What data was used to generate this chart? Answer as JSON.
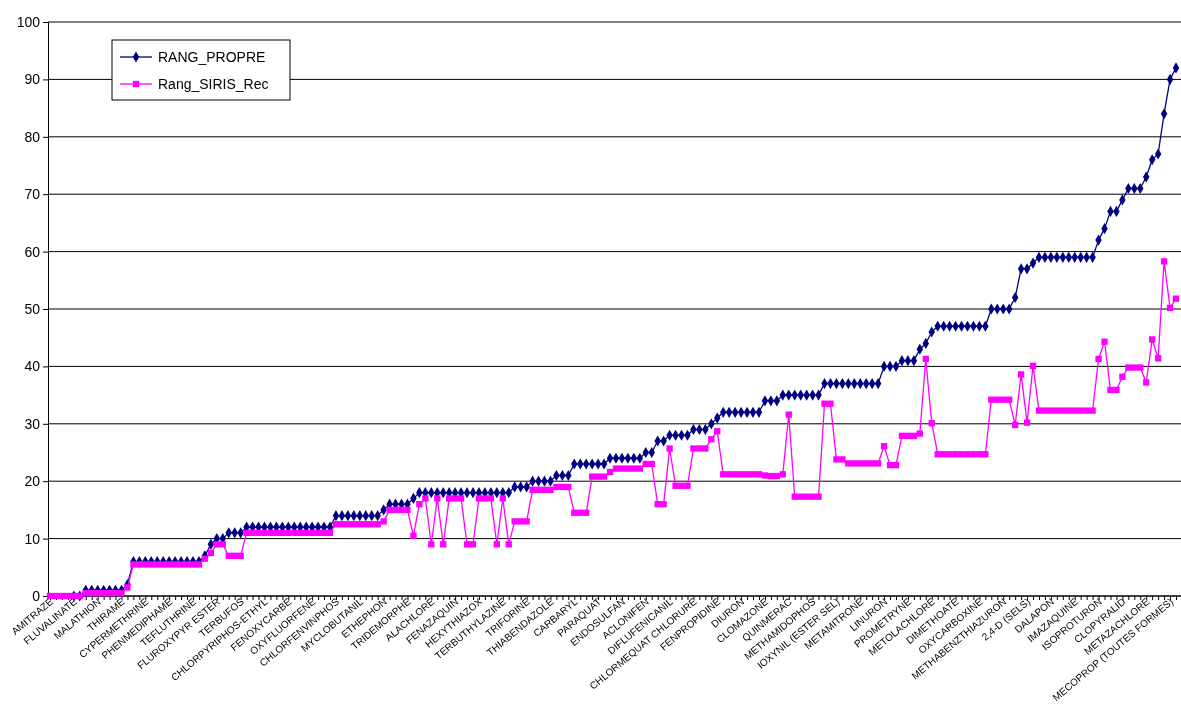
{
  "chart_data": {
    "type": "line",
    "categories": [
      "AMITRAZE",
      null,
      null,
      null,
      "FLUVALINATE",
      null,
      null,
      null,
      "MALATHION",
      null,
      null,
      null,
      "THIRAME",
      null,
      null,
      null,
      "CYPERMETHRINE",
      null,
      null,
      null,
      "PHENMEDIPHAME",
      null,
      null,
      null,
      "TEFLUTHRINE",
      null,
      null,
      null,
      "FLUROXYPYR ESTER",
      null,
      null,
      null,
      "TERBUFOS",
      null,
      null,
      null,
      "CHLORPYRIPHOS-ETHYL",
      null,
      null,
      null,
      "FENOXYCARBE",
      null,
      null,
      null,
      "OXYFLUORFENE",
      null,
      null,
      null,
      "CHLORFENVINPHOS",
      null,
      null,
      null,
      "MYCLOBUTANIL",
      null,
      null,
      null,
      "ETHEPHON",
      null,
      null,
      null,
      "TRIDEMORPHE",
      null,
      null,
      null,
      "ALACHLORE",
      null,
      null,
      null,
      "FENAZAQUIN",
      null,
      null,
      null,
      "HEXYTHIAZOX",
      null,
      null,
      null,
      "TERBUTHYLAZINE",
      null,
      null,
      null,
      "TRIFORINE",
      null,
      null,
      null,
      "THIABENDAZOLE",
      null,
      null,
      null,
      "CARBARYL",
      null,
      null,
      null,
      "PARAQUAT",
      null,
      null,
      null,
      "ENDOSULFAN",
      null,
      null,
      null,
      "ACLONIFEN",
      null,
      null,
      null,
      "DIFLUFENICANIL",
      null,
      null,
      null,
      "CHLORMEQUAT CHLORURE",
      null,
      null,
      null,
      "FENPROPIDINE",
      null,
      null,
      null,
      "DIURON",
      null,
      null,
      null,
      "CLOMAZONE",
      null,
      null,
      null,
      "QUINMERAC",
      null,
      null,
      null,
      "METHAMIDOPHOS",
      null,
      null,
      null,
      "IOXYNIL (ESTER SEL)",
      null,
      null,
      null,
      "METAMITRONE",
      null,
      null,
      null,
      "LINURON",
      null,
      null,
      null,
      "PROMETRYNE",
      null,
      null,
      null,
      "METOLACHLORE",
      null,
      null,
      null,
      "DIMETHOATE",
      null,
      null,
      null,
      "OXYCARBOXINE",
      null,
      null,
      null,
      "METHABENZTHIAZURON",
      null,
      null,
      null,
      "2,4-D (SELS)",
      null,
      null,
      null,
      "DALAPON",
      null,
      null,
      null,
      "IMAZAQUINE",
      null,
      null,
      null,
      "ISOPROTURON",
      null,
      null,
      null,
      "CLOPYRALID",
      null,
      null,
      null,
      "METAZACHLORE",
      null,
      null,
      null,
      "MECOPROP (TOUTES FORMES)",
      null
    ],
    "series": [
      {
        "name": "RANG_PROPRE",
        "color": "#000080",
        "marker": "diamond",
        "values": [
          null,
          null,
          null,
          null,
          0,
          0,
          1,
          1,
          1,
          1,
          1,
          1,
          1,
          2,
          6,
          6,
          6,
          6,
          6,
          6,
          6,
          6,
          6,
          6,
          6,
          6,
          7,
          9,
          10,
          10,
          11,
          11,
          11,
          12,
          12,
          12,
          12,
          12,
          12,
          12,
          12,
          12,
          12,
          12,
          12,
          12,
          12,
          12,
          14,
          14,
          14,
          14,
          14,
          14,
          14,
          14,
          15,
          16,
          16,
          16,
          16,
          17,
          18,
          18,
          18,
          18,
          18,
          18,
          18,
          18,
          18,
          18,
          18,
          18,
          18,
          18,
          18,
          18,
          19,
          19,
          19,
          20,
          20,
          20,
          20,
          21,
          21,
          21,
          23,
          23,
          23,
          23,
          23,
          23,
          24,
          24,
          24,
          24,
          24,
          24,
          25,
          25,
          27,
          27,
          28,
          28,
          28,
          28,
          29,
          29,
          29,
          30,
          31,
          32,
          32,
          32,
          32,
          32,
          32,
          32,
          34,
          34,
          34,
          35,
          35,
          35,
          35,
          35,
          35,
          35,
          37,
          37,
          37,
          37,
          37,
          37,
          37,
          37,
          37,
          37,
          40,
          40,
          40,
          41,
          41,
          41,
          43,
          44,
          46,
          47,
          47,
          47,
          47,
          47,
          47,
          47,
          47,
          47,
          50,
          50,
          50,
          50,
          52,
          57,
          57,
          58,
          59,
          59,
          59,
          59,
          59,
          59,
          59,
          59,
          59,
          59,
          62,
          64,
          67,
          67,
          69,
          71,
          71,
          71,
          73,
          76,
          77,
          84,
          90,
          92
        ]
      },
      {
        "name": "Rang_SIRIS_Rec",
        "color": "#ff00ff",
        "marker": "square",
        "values": [
          0,
          0,
          0,
          0,
          0,
          0,
          0.5,
          0.5,
          0.5,
          0.5,
          0.5,
          0.5,
          0.5,
          1.5,
          5.5,
          5.5,
          5.5,
          5.5,
          5.5,
          5.5,
          5.5,
          5.5,
          5.5,
          5.5,
          5.5,
          5.5,
          6.5,
          7.5,
          9,
          9,
          7,
          7,
          7,
          11,
          11,
          11,
          11,
          11,
          11,
          11,
          11,
          11,
          11,
          11,
          11,
          11,
          11,
          11,
          12.5,
          12.5,
          12.5,
          12.5,
          12.5,
          12.5,
          12.5,
          12.5,
          13,
          15,
          15,
          15,
          15,
          10.5,
          16,
          17,
          9,
          17,
          9,
          17,
          17,
          17,
          9,
          9,
          17,
          17,
          17,
          9,
          17,
          9,
          13,
          13,
          13,
          18.5,
          18.5,
          18.5,
          18.5,
          19,
          19,
          19,
          14.5,
          14.5,
          14.5,
          20.8,
          20.8,
          20.8,
          21.6,
          22.2,
          22.2,
          22.2,
          22.2,
          22.2,
          23,
          23,
          16,
          16,
          25.7,
          19.2,
          19.2,
          19.2,
          25.7,
          25.7,
          25.7,
          27.3,
          28.7,
          21.2,
          21.2,
          21.2,
          21.2,
          21.2,
          21.2,
          21.2,
          21,
          20.9,
          20.9,
          21.2,
          31.6,
          17.3,
          17.3,
          17.3,
          17.3,
          17.3,
          33.5,
          33.5,
          23.8,
          23.8,
          23.1,
          23.1,
          23.1,
          23.1,
          23.1,
          23.1,
          26.1,
          22.8,
          22.8,
          27.9,
          27.9,
          27.9,
          28.3,
          41.3,
          30.1,
          24.7,
          24.7,
          24.7,
          24.7,
          24.7,
          24.7,
          24.7,
          24.7,
          24.7,
          34.2,
          34.2,
          34.2,
          34.2,
          29.8,
          38.6,
          30.2,
          40.1,
          32.3,
          32.3,
          32.3,
          32.3,
          32.3,
          32.3,
          32.3,
          32.3,
          32.3,
          32.3,
          41.3,
          44.3,
          35.9,
          35.9,
          38.2,
          39.8,
          39.8,
          39.8,
          37.2,
          44.7,
          41.4,
          58.3,
          50.2,
          51.8
        ]
      }
    ],
    "ylim": [
      0,
      100
    ],
    "yticks": [
      0,
      10,
      20,
      30,
      40,
      50,
      60,
      70,
      80,
      90,
      100
    ],
    "grid": "y",
    "legend": "top left"
  }
}
